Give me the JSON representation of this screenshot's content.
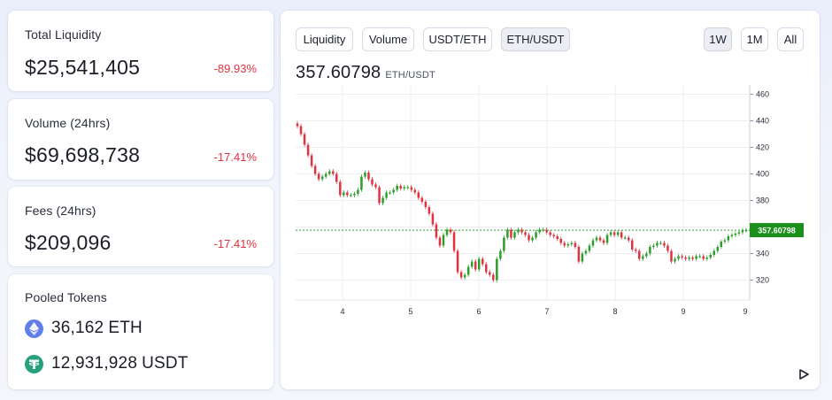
{
  "stats": {
    "total_liquidity": {
      "label": "Total Liquidity",
      "value": "$25,541,405",
      "change": "-89.93%"
    },
    "volume": {
      "label": "Volume (24hrs)",
      "value": "$69,698,738",
      "change": "-17.41%"
    },
    "fees": {
      "label": "Fees (24hrs)",
      "value": "$209,096",
      "change": "-17.41%"
    }
  },
  "pooled_tokens": {
    "label": "Pooled Tokens",
    "tokens": [
      {
        "amount": "36,162",
        "symbol": "ETH",
        "icon": "ethereum-icon",
        "color": "#627eea"
      },
      {
        "amount": "12,931,928",
        "symbol": "USDT",
        "icon": "tether-icon",
        "color": "#26a17b"
      }
    ]
  },
  "chart_panel": {
    "tabs": [
      "Liquidity",
      "Volume",
      "USDT/ETH",
      "ETH/USDT"
    ],
    "active_tab": "ETH/USDT",
    "ranges": [
      "1W",
      "1M",
      "All"
    ],
    "active_range": "1W",
    "price": "357.60798",
    "price_unit": "ETH/USDT"
  },
  "colors": {
    "up": "#2a9d2a",
    "down": "#e0323f",
    "price_label_bg": "#1a8f1a",
    "change_negative": "#e0323f"
  },
  "chart_data": {
    "type": "candlestick",
    "title": "",
    "xlabel": "",
    "ylabel": "",
    "x_ticks": [
      "4",
      "5",
      "6",
      "7",
      "8",
      "9",
      "9"
    ],
    "y_ticks": [
      460,
      440,
      420,
      400,
      380,
      360,
      340,
      320
    ],
    "ylim": [
      305,
      467
    ],
    "last_price": 357.60798,
    "last_price_label": "357.60798",
    "grid": true,
    "close": [
      436,
      430,
      422,
      414,
      406,
      400,
      396,
      398,
      400,
      402,
      400,
      394,
      384,
      386,
      384,
      384,
      385,
      388,
      398,
      401,
      396,
      392,
      390,
      378,
      382,
      386,
      386,
      388,
      391,
      389,
      390,
      390,
      388,
      386,
      382,
      379,
      375,
      370,
      362,
      352,
      346,
      354,
      358,
      356,
      342,
      326,
      322,
      324,
      330,
      334,
      328,
      336,
      332,
      326,
      324,
      320,
      336,
      342,
      352,
      358,
      352,
      356,
      358,
      356,
      354,
      350,
      352,
      356,
      358,
      358,
      356,
      354,
      353,
      351,
      348,
      346,
      347,
      348,
      345,
      334,
      340,
      342,
      346,
      350,
      352,
      350,
      348,
      354,
      356,
      354,
      356,
      352,
      352,
      350,
      343,
      342,
      336,
      338,
      340,
      345,
      346,
      348,
      348,
      346,
      342,
      334,
      336,
      338,
      337,
      336,
      337,
      336,
      338,
      338,
      336,
      337,
      339,
      342,
      345,
      349,
      350,
      353,
      354,
      355,
      356,
      357.6,
      357.6
    ]
  }
}
